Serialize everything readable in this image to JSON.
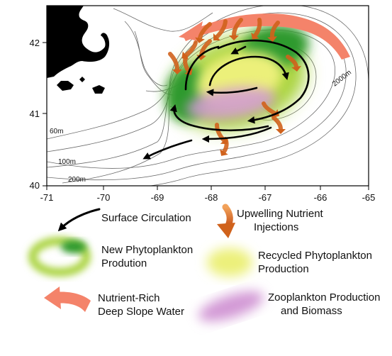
{
  "axes": {
    "lon_ticks": [
      "-71",
      "-70",
      "-69",
      "-68",
      "-67",
      "-66",
      "-65"
    ],
    "lat_ticks": [
      "42",
      "41",
      "40"
    ]
  },
  "contours": {
    "c60": "60m",
    "c100": "100m",
    "c200": "200m",
    "c2000": "2000m"
  },
  "legend": {
    "surface_circulation": "Surface Circulation",
    "upwelling_line1": "Upwelling Nutrient",
    "upwelling_line2": "Injections",
    "new_phyto_line1": "New Phytoplankton",
    "new_phyto_line2": "Prodution",
    "recycled_line1": "Recycled Phytoplankton",
    "recycled_line2": "Production",
    "deep_water_line1": "Nutrient-Rich",
    "deep_water_line2": "Deep Slope Water",
    "zoo_line1": "Zooplankton Production",
    "zoo_line2": "and Biomass"
  },
  "colors": {
    "land": "#000000",
    "frame": "#000000",
    "contour": "#6a6a6a",
    "circulation": "#000000",
    "upwelling": "#d0621c",
    "new_phyto_green": "#2e9a2e",
    "new_phyto_light": "#a9d33c",
    "recycled_yellow": "#ecf07a",
    "zooplankton": "#d39ad6",
    "deep_slope_water": "#f4836a"
  }
}
